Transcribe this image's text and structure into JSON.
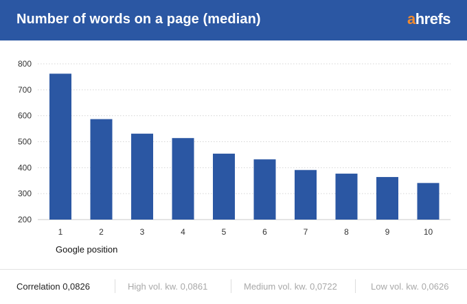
{
  "header": {
    "title": "Number of words on a page (median)",
    "logo_a": "a",
    "logo_rest": "hrefs"
  },
  "colors": {
    "header_bg": "#2b57a3",
    "bar": "#2b57a3",
    "logo_accent": "#f28a2e"
  },
  "chart_data": {
    "type": "bar",
    "categories": [
      "1",
      "2",
      "3",
      "4",
      "5",
      "6",
      "7",
      "8",
      "9",
      "10"
    ],
    "values": [
      762,
      587,
      531,
      514,
      454,
      432,
      391,
      377,
      364,
      341
    ],
    "title": "Number of words on a page (median)",
    "xlabel": "Google position",
    "ylabel": "",
    "ylim": [
      200,
      800
    ],
    "yticks": [
      200,
      300,
      400,
      500,
      600,
      700,
      800
    ],
    "grid": true
  },
  "footer": {
    "correlation": "Correlation 0,0826",
    "high": "High vol. kw. 0,0861",
    "medium": "Medium vol. kw. 0,0722",
    "low": "Low vol. kw. 0,0626"
  }
}
